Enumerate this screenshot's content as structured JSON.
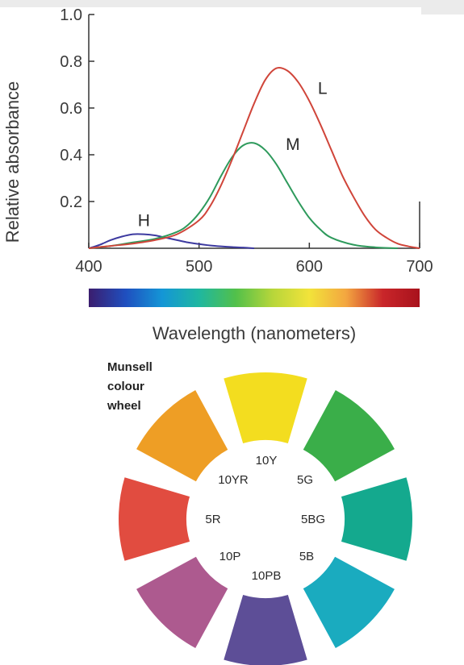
{
  "chart_data": [
    {
      "type": "line",
      "title": "",
      "xlabel": "Wavelength (nanometers)",
      "ylabel": "Relative absorbance",
      "xlim": [
        400,
        700
      ],
      "ylim": [
        0,
        1.0
      ],
      "x_ticks": [
        "400",
        "500",
        "600",
        "700"
      ],
      "y_ticks": [
        "0.2",
        "0.4",
        "0.6",
        "0.8",
        "1.0"
      ],
      "grid": false,
      "spectrum_bar": [
        "#3b1d6e",
        "#1f4fbf",
        "#1496d6",
        "#1fb7a0",
        "#52c04a",
        "#b7d63a",
        "#f2e33a",
        "#f3a640",
        "#c9262a",
        "#a8121c"
      ],
      "series": [
        {
          "name": "H",
          "color": "#3d3aa0",
          "x": [
            400,
            410,
            420,
            430,
            440,
            450,
            460,
            470,
            480,
            490,
            500,
            510,
            520,
            530,
            540,
            550
          ],
          "y": [
            0.0,
            0.015,
            0.035,
            0.05,
            0.06,
            0.06,
            0.055,
            0.045,
            0.035,
            0.025,
            0.018,
            0.012,
            0.008,
            0.005,
            0.003,
            0.0
          ]
        },
        {
          "name": "M",
          "color": "#2e9a5c",
          "x": [
            400,
            420,
            440,
            460,
            480,
            490,
            500,
            510,
            520,
            530,
            540,
            550,
            560,
            570,
            580,
            590,
            600,
            610,
            620,
            640,
            660,
            680
          ],
          "y": [
            0.0,
            0.01,
            0.025,
            0.04,
            0.07,
            0.1,
            0.15,
            0.22,
            0.31,
            0.39,
            0.44,
            0.45,
            0.42,
            0.36,
            0.28,
            0.2,
            0.13,
            0.08,
            0.045,
            0.015,
            0.004,
            0.0
          ]
        },
        {
          "name": "L",
          "color": "#d0453a",
          "x": [
            400,
            420,
            440,
            460,
            480,
            500,
            510,
            520,
            530,
            540,
            550,
            560,
            570,
            580,
            590,
            600,
            610,
            620,
            630,
            640,
            650,
            660,
            670,
            680,
            690,
            700
          ],
          "y": [
            0.0,
            0.01,
            0.02,
            0.035,
            0.06,
            0.12,
            0.18,
            0.27,
            0.38,
            0.5,
            0.62,
            0.72,
            0.77,
            0.76,
            0.71,
            0.63,
            0.53,
            0.42,
            0.31,
            0.22,
            0.14,
            0.08,
            0.045,
            0.02,
            0.008,
            0.0
          ]
        }
      ]
    },
    {
      "type": "diagram",
      "title_lines": [
        "Munsell",
        "colour",
        "wheel"
      ],
      "segments": [
        {
          "label": "10Y",
          "color": "#f3dd1f"
        },
        {
          "label": "5G",
          "color": "#3aae49"
        },
        {
          "label": "5BG",
          "color": "#14a98e"
        },
        {
          "label": "5B",
          "color": "#1aabbf"
        },
        {
          "label": "10PB",
          "color": "#5d4e97"
        },
        {
          "label": "10P",
          "color": "#ad5a8f"
        },
        {
          "label": "5R",
          "color": "#e14c40"
        },
        {
          "label": "10YR",
          "color": "#ee9e25"
        }
      ]
    }
  ]
}
